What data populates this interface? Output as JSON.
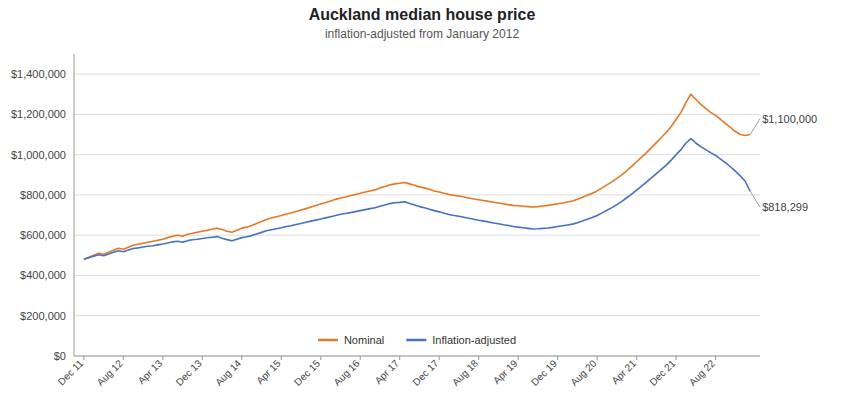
{
  "chart_data": {
    "type": "line",
    "title": "Auckland median house price",
    "subtitle": "inflation-adjusted from January 2012",
    "categories": [
      "Dec 11",
      null,
      null,
      null,
      null,
      null,
      null,
      null,
      "Aug 12",
      null,
      null,
      null,
      null,
      null,
      null,
      null,
      "Apr 13",
      null,
      null,
      null,
      null,
      null,
      null,
      null,
      "Dec 13",
      null,
      null,
      null,
      null,
      null,
      null,
      null,
      "Aug 14",
      null,
      null,
      null,
      null,
      null,
      null,
      null,
      "Apr 15",
      null,
      null,
      null,
      null,
      null,
      null,
      null,
      "Dec 15",
      null,
      null,
      null,
      null,
      null,
      null,
      null,
      "Aug 16",
      null,
      null,
      null,
      null,
      null,
      null,
      null,
      "Apr 17",
      null,
      null,
      null,
      null,
      null,
      null,
      null,
      "Dec 17",
      null,
      null,
      null,
      null,
      null,
      null,
      null,
      "Aug 18",
      null,
      null,
      null,
      null,
      null,
      null,
      null,
      "Apr 19",
      null,
      null,
      null,
      null,
      null,
      null,
      null,
      "Dec 19",
      null,
      null,
      null,
      null,
      null,
      null,
      null,
      "Aug 20",
      null,
      null,
      null,
      null,
      null,
      null,
      null,
      "Apr 21",
      null,
      null,
      null,
      null,
      null,
      null,
      null,
      "Dec 21",
      null,
      null,
      null,
      null,
      null,
      null,
      null,
      "Aug 22",
      null,
      null,
      null,
      null,
      null,
      null,
      null
    ],
    "series": [
      {
        "name": "Nominal",
        "color": "#E87722",
        "values": [
          480000,
          490000,
          500000,
          510000,
          505000,
          515000,
          525000,
          535000,
          530000,
          540000,
          550000,
          555000,
          560000,
          565000,
          570000,
          575000,
          580000,
          588000,
          595000,
          600000,
          595000,
          605000,
          610000,
          615000,
          620000,
          625000,
          630000,
          635000,
          628000,
          620000,
          615000,
          625000,
          635000,
          640000,
          648000,
          658000,
          668000,
          678000,
          685000,
          692000,
          698000,
          705000,
          710000,
          718000,
          725000,
          732000,
          740000,
          748000,
          755000,
          762000,
          770000,
          778000,
          785000,
          790000,
          796000,
          802000,
          808000,
          815000,
          820000,
          825000,
          835000,
          842000,
          850000,
          855000,
          858000,
          862000,
          855000,
          848000,
          840000,
          835000,
          828000,
          820000,
          815000,
          808000,
          802000,
          798000,
          795000,
          790000,
          785000,
          780000,
          776000,
          772000,
          768000,
          764000,
          760000,
          756000,
          752000,
          748000,
          746000,
          744000,
          742000,
          740000,
          742000,
          745000,
          748000,
          752000,
          756000,
          760000,
          765000,
          770000,
          778000,
          788000,
          798000,
          808000,
          820000,
          835000,
          850000,
          865000,
          882000,
          900000,
          920000,
          942000,
          965000,
          988000,
          1010000,
          1035000,
          1060000,
          1085000,
          1110000,
          1140000,
          1175000,
          1210000,
          1260000,
          1300000,
          1275000,
          1250000,
          1230000,
          1210000,
          1195000,
          1175000,
          1155000,
          1135000,
          1115000,
          1100000,
          1095000,
          1100000
        ]
      },
      {
        "name": "Inflation-adjusted",
        "color": "#4472C4",
        "values": [
          480000,
          488000,
          496000,
          503000,
          498000,
          507000,
          515000,
          523000,
          518000,
          526000,
          534000,
          537000,
          541000,
          545000,
          548000,
          552000,
          556000,
          561000,
          567000,
          570000,
          565000,
          573000,
          577000,
          580000,
          584000,
          587000,
          590000,
          593000,
          585000,
          578000,
          572000,
          580000,
          588000,
          592000,
          598000,
          606000,
          614000,
          622000,
          627000,
          632000,
          637000,
          643000,
          647000,
          653000,
          658000,
          664000,
          670000,
          675000,
          680000,
          686000,
          692000,
          698000,
          704000,
          708000,
          712000,
          717000,
          722000,
          727000,
          732000,
          736000,
          744000,
          750000,
          757000,
          761000,
          763000,
          766000,
          758000,
          750000,
          742000,
          736000,
          729000,
          722000,
          716000,
          709000,
          703000,
          698000,
          694000,
          689000,
          684000,
          679000,
          674000,
          670000,
          666000,
          661000,
          657000,
          652000,
          648000,
          643000,
          640000,
          637000,
          634000,
          631000,
          632000,
          634000,
          636000,
          639000,
          643000,
          647000,
          651000,
          655000,
          662000,
          670000,
          679000,
          688000,
          698000,
          711000,
          724000,
          737000,
          752000,
          768000,
          786000,
          804000,
          824000,
          844000,
          864000,
          885000,
          906000,
          927000,
          948000,
          973000,
          1000000,
          1025000,
          1058000,
          1080000,
          1058000,
          1040000,
          1025000,
          1010000,
          996000,
          978000,
          960000,
          940000,
          918000,
          895000,
          868000,
          818299
        ]
      }
    ],
    "annotations": [
      {
        "text": "$1,100,000",
        "value": 1100000
      },
      {
        "text": "$818,299",
        "value": 818299
      }
    ],
    "ylim": [
      0,
      1500000
    ],
    "yticks": [
      {
        "value": 0,
        "label": "$0"
      },
      {
        "value": 200000,
        "label": "$200,000"
      },
      {
        "value": 400000,
        "label": "$400,000"
      },
      {
        "value": 600000,
        "label": "$600,000"
      },
      {
        "value": 800000,
        "label": "$800,000"
      },
      {
        "value": 1000000,
        "label": "$1,000,000"
      },
      {
        "value": 1200000,
        "label": "$1,200,000"
      },
      {
        "value": 1400000,
        "label": "$1,400,000"
      }
    ],
    "grid": true,
    "legend": "bottom"
  }
}
